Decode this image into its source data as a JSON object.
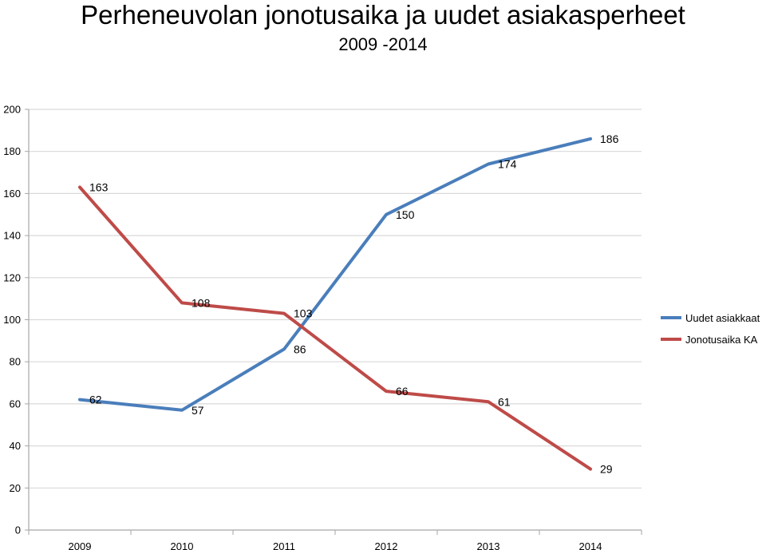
{
  "chart_data": {
    "type": "line",
    "title": "Perheneuvolan jonotusaika ja uudet asiakasperheet",
    "subtitle": "2009 -2014",
    "categories": [
      "2009",
      "2010",
      "2011",
      "2012",
      "2013",
      "2014"
    ],
    "ylim": [
      0,
      200
    ],
    "yticks": [
      0,
      20,
      40,
      60,
      80,
      100,
      120,
      140,
      160,
      180,
      200
    ],
    "grid": true,
    "legend_position": "right",
    "series": [
      {
        "name": "Uudet asiakkaat",
        "color": "#4a7ebb",
        "values": [
          62,
          57,
          86,
          150,
          174,
          186
        ]
      },
      {
        "name": "Jonotusaika KA",
        "color": "#be4b48",
        "values": [
          163,
          108,
          103,
          66,
          61,
          29
        ]
      }
    ]
  }
}
